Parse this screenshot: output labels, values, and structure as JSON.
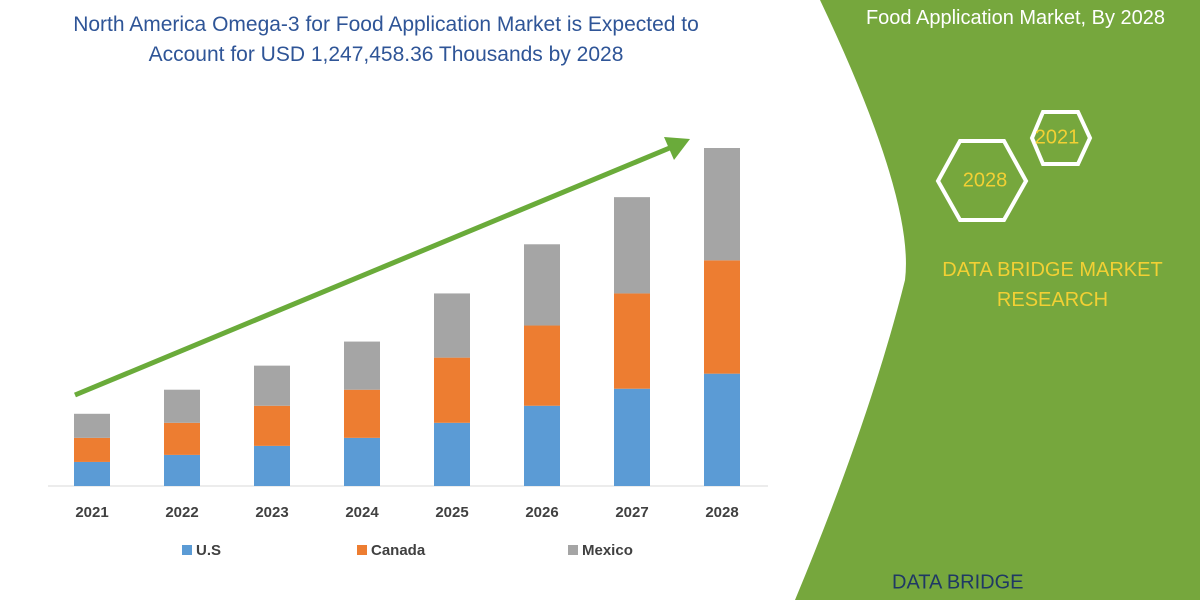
{
  "chart_data": {
    "type": "bar",
    "stacked": true,
    "title": "North America Omega-3 for Food Application Market is Expected to Account for USD 1,247,458.36 Thousands by 2028",
    "categories": [
      "2021",
      "2022",
      "2023",
      "2024",
      "2025",
      "2026",
      "2027",
      "2028"
    ],
    "series": [
      {
        "name": "U.S",
        "color": "#5b9bd5",
        "values": [
          24,
          31,
          40,
          48,
          63,
          80,
          97,
          112
        ]
      },
      {
        "name": "Canada",
        "color": "#ed7d31",
        "values": [
          24,
          32,
          40,
          48,
          65,
          80,
          95,
          113
        ]
      },
      {
        "name": "Mexico",
        "color": "#a5a5a5",
        "values": [
          24,
          33,
          40,
          48,
          64,
          81,
          96,
          112
        ]
      }
    ]
  },
  "panel": {
    "heading": "Food Application Market, By 2028",
    "hex_labels": [
      "2021",
      "2028"
    ],
    "brand": "DATA BRIDGE MARKET RESEARCH",
    "logo": "DATA BRIDGE"
  }
}
